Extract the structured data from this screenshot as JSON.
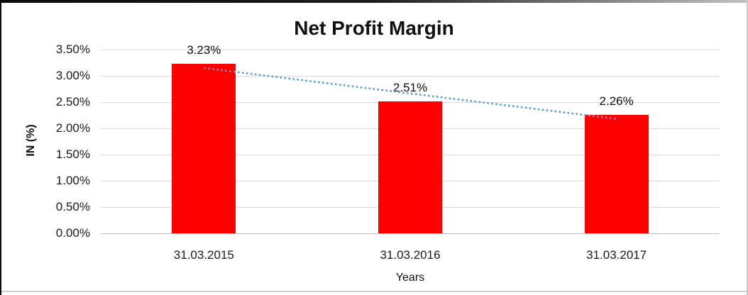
{
  "chart_data": {
    "type": "bar",
    "title": "Net Profit Margin",
    "xlabel": "Years",
    "ylabel": "IN (%)",
    "categories": [
      "31.03.2015",
      "31.03.2016",
      "31.03.2017"
    ],
    "values": [
      3.23,
      2.51,
      2.26
    ],
    "data_labels": [
      "3.23%",
      "2.51%",
      "2.26%"
    ],
    "ylim": [
      0,
      3.5
    ],
    "ytick_step": 0.5,
    "ytick_labels": [
      "0.00%",
      "0.50%",
      "1.00%",
      "1.50%",
      "2.00%",
      "2.50%",
      "3.00%",
      "3.50%"
    ],
    "grid": true,
    "legend": false,
    "bar_color": "#ff0000",
    "gridline_color": "#d9d9d9",
    "axis_line_color": "#bfbfbf",
    "trendline": {
      "style": "dotted",
      "color": "#5b9bd5",
      "start_value": 3.15,
      "end_value": 2.18
    }
  }
}
